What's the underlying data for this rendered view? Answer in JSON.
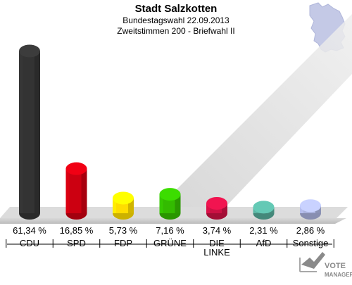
{
  "header": {
    "title": "Stadt Salzkotten",
    "subtitle_1": "Bundestagswahl 22.09.2013",
    "subtitle_2": "Zweitstimmen 200 - Briefwahl II"
  },
  "logo": {
    "text_1": "VOTE",
    "text_2": "MANAGER"
  },
  "chart_data": {
    "type": "bar",
    "title": "Stadt Salzkotten",
    "subtitle": [
      "Bundestagswahl 22.09.2013",
      "Zweitstimmen 200 - Briefwahl II"
    ],
    "categories": [
      "CDU",
      "SPD",
      "FDP",
      "GRÜNE",
      "DIE LINKE",
      "AfD",
      "Sonstige"
    ],
    "category_lines": [
      [
        "CDU"
      ],
      [
        "SPD"
      ],
      [
        "FDP"
      ],
      [
        "GRÜNE"
      ],
      [
        "DIE",
        "LINKE"
      ],
      [
        "AfD"
      ],
      [
        "Sonstige"
      ]
    ],
    "values": [
      61.34,
      16.85,
      5.73,
      7.16,
      3.74,
      2.31,
      2.86
    ],
    "value_labels": [
      "61,34 %",
      "16,85 %",
      "5,73 %",
      "7,16 %",
      "3,74 %",
      "2,31 %",
      "2,86 %"
    ],
    "colors": [
      "#333333",
      "#cc0011",
      "#ffdd00",
      "#33bb00",
      "#cc1144",
      "#55aa99",
      "#aab2dd"
    ],
    "xlabel": "",
    "ylabel": "",
    "ylim": [
      0,
      62
    ],
    "grid": false,
    "legend": "none"
  }
}
